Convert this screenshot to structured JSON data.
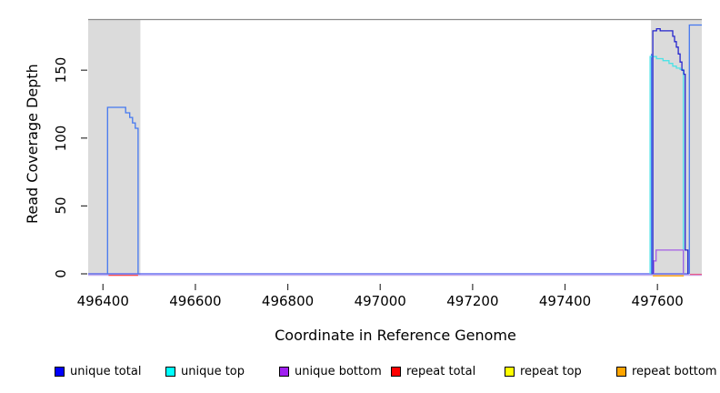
{
  "chart_data": {
    "type": "line",
    "title": "",
    "xlabel": "Coordinate in Reference Genome",
    "ylabel": "Read Coverage Depth",
    "xlim": [
      496368,
      497698
    ],
    "ylim": [
      0,
      187.3
    ],
    "x_ticks": [
      496400,
      496600,
      496800,
      497000,
      497200,
      497400,
      497600
    ],
    "y_ticks": [
      0,
      50,
      100,
      150
    ],
    "grid": false,
    "legend_position": "bottom",
    "plot_background": "#FFFFFF",
    "shaded_region_color": "#DBDBDB",
    "top_border_color": "#8A8A8A",
    "shaded_regions": [
      {
        "x0": 496368,
        "x1": 496481
      },
      {
        "x0": 497586,
        "x1": 497696
      }
    ],
    "series": [
      {
        "name": "baseline-shadow",
        "color": "#C9B0F0",
        "dy": 1.6,
        "points": [
          [
            496368,
            0
          ],
          [
            497696,
            0
          ]
        ]
      },
      {
        "name": "baseline-unique-zero",
        "color": "#4A55EE",
        "dy": 0,
        "points": [
          [
            496368,
            0
          ],
          [
            497668,
            0
          ]
        ]
      },
      {
        "name": "baseline-repeat-left",
        "color": "#FF4D4D",
        "dy": 1.6,
        "points": [
          [
            496412,
            0
          ],
          [
            496476,
            0
          ]
        ]
      },
      {
        "name": "baseline-repeat-right",
        "color": "#FFA500",
        "dy": 2.2,
        "points": [
          [
            497590,
            0
          ],
          [
            497657,
            0
          ]
        ]
      },
      {
        "name": "baseline-repeat-far-right",
        "color": "#E85A8A",
        "dy": 0.6,
        "points": [
          [
            497670,
            0
          ],
          [
            497696,
            0
          ]
        ]
      },
      {
        "name": "unique-total-spike-left-edge",
        "color": "#4478F0",
        "points": [
          [
            497587,
            0
          ],
          [
            497587,
            162
          ]
        ]
      },
      {
        "name": "unique-top-right",
        "color": "#4CE2E6",
        "points": [
          [
            497584,
            0
          ],
          [
            497584,
            160
          ],
          [
            497598,
            160
          ],
          [
            497598,
            158.5
          ],
          [
            497612,
            158.5
          ],
          [
            497612,
            157
          ],
          [
            497625,
            157
          ],
          [
            497625,
            155
          ],
          [
            497633,
            155
          ],
          [
            497633,
            153
          ],
          [
            497641,
            153
          ],
          [
            497641,
            151.5
          ],
          [
            497649,
            151.5
          ],
          [
            497649,
            150.5
          ],
          [
            497656,
            150.5
          ],
          [
            497656,
            0
          ]
        ]
      },
      {
        "name": "unique-bottom-right",
        "color": "#A55CE6",
        "points": [
          [
            497592,
            0
          ],
          [
            497592,
            9.5
          ],
          [
            497597,
            9.5
          ],
          [
            497597,
            17.5
          ],
          [
            497656,
            17.5
          ],
          [
            497656,
            0
          ]
        ]
      },
      {
        "name": "unique-total-right",
        "color": "#2626CE",
        "points": [
          [
            497590,
            0
          ],
          [
            497590,
            179
          ],
          [
            497598,
            179
          ],
          [
            497598,
            180.5
          ],
          [
            497606,
            180.5
          ],
          [
            497606,
            179
          ],
          [
            497633,
            179
          ],
          [
            497633,
            175
          ],
          [
            497637,
            175
          ],
          [
            497637,
            171
          ],
          [
            497641,
            171
          ],
          [
            497641,
            167
          ],
          [
            497645,
            167
          ],
          [
            497645,
            162
          ],
          [
            497649,
            162
          ],
          [
            497649,
            156
          ],
          [
            497653,
            156
          ],
          [
            497653,
            150
          ],
          [
            497657,
            150
          ],
          [
            497657,
            147
          ],
          [
            497660,
            147
          ],
          [
            497660,
            17.5
          ],
          [
            497666,
            17.5
          ],
          [
            497666,
            0
          ]
        ]
      },
      {
        "name": "unique-total-left",
        "color": "#4478F0",
        "points": [
          [
            496410,
            0
          ],
          [
            496410,
            122.6
          ],
          [
            496449,
            122.6
          ],
          [
            496449,
            118.6
          ],
          [
            496458,
            118.6
          ],
          [
            496458,
            115.2
          ],
          [
            496464,
            115.2
          ],
          [
            496464,
            111.2
          ],
          [
            496470,
            111.2
          ],
          [
            496470,
            107.2
          ],
          [
            496476,
            107.2
          ],
          [
            496476,
            0
          ]
        ]
      },
      {
        "name": "unique-total-far-right",
        "color": "#4478F0",
        "points": [
          [
            497669,
            0
          ],
          [
            497669,
            183.3
          ],
          [
            497696,
            183.3
          ]
        ]
      }
    ],
    "legend": [
      {
        "label": "unique total",
        "color": "#0000FF"
      },
      {
        "label": "unique top",
        "color": "#00FFFF"
      },
      {
        "label": "unique bottom",
        "color": "#A020F0"
      },
      {
        "label": "repeat total",
        "color": "#FF0000"
      },
      {
        "label": "repeat top",
        "color": "#FFFF00"
      },
      {
        "label": "repeat bottom",
        "color": "#FFA500"
      }
    ]
  }
}
